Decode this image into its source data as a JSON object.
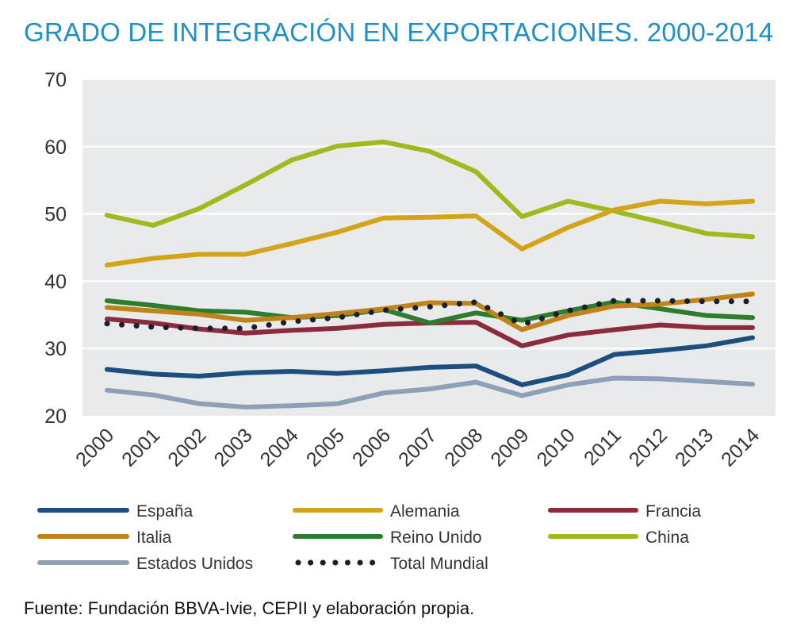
{
  "title": "GRADO DE INTEGRACIÓN EN EXPORTACIONES. 2000-2014",
  "source": "Fuente: Fundación BBVA-Ivie, CEPII y elaboración propia.",
  "chart_data": {
    "type": "line",
    "title": "GRADO DE INTEGRACIÓN EN EXPORTACIONES. 2000-2014",
    "xlabel": "",
    "ylabel": "",
    "ylim": [
      20,
      70
    ],
    "yticks": [
      20,
      30,
      40,
      50,
      60,
      70
    ],
    "grid": true,
    "legend_position": "bottom",
    "background": "#e9eaeb",
    "categories": [
      "2000",
      "2001",
      "2002",
      "2003",
      "2004",
      "2005",
      "2006",
      "2007",
      "2008",
      "2009",
      "2010",
      "2011",
      "2012",
      "2013",
      "2014"
    ],
    "series": [
      {
        "name": "España",
        "color": "#1c4f80",
        "style": "solid",
        "values": [
          26.9,
          26.2,
          25.9,
          26.4,
          26.6,
          26.3,
          26.7,
          27.2,
          27.4,
          24.6,
          26.1,
          29.1,
          29.7,
          30.4,
          31.6
        ]
      },
      {
        "name": "Alemania",
        "color": "#d4a418",
        "style": "solid",
        "values": [
          42.4,
          43.4,
          44.0,
          44.0,
          45.6,
          47.3,
          49.4,
          49.5,
          49.7,
          44.8,
          48.0,
          50.6,
          51.9,
          51.5,
          51.9
        ]
      },
      {
        "name": "Francia",
        "color": "#8c2b3e",
        "style": "solid",
        "values": [
          34.4,
          33.8,
          32.9,
          32.3,
          32.7,
          33.0,
          33.6,
          33.8,
          33.9,
          30.4,
          32.0,
          32.8,
          33.5,
          33.1,
          33.1
        ]
      },
      {
        "name": "Italia",
        "color": "#c08319",
        "style": "solid",
        "values": [
          36.1,
          35.6,
          35.1,
          34.2,
          34.6,
          35.2,
          35.9,
          36.8,
          36.7,
          32.8,
          34.9,
          36.3,
          36.6,
          37.3,
          38.1
        ]
      },
      {
        "name": "Reino Unido",
        "color": "#2e7d2e",
        "style": "solid",
        "values": [
          37.1,
          36.4,
          35.6,
          35.4,
          34.6,
          34.9,
          35.8,
          33.8,
          35.3,
          34.2,
          35.6,
          36.9,
          35.9,
          34.9,
          34.6
        ]
      },
      {
        "name": "China",
        "color": "#9dbb1c",
        "style": "solid",
        "values": [
          49.8,
          48.3,
          50.8,
          54.3,
          58.0,
          60.1,
          60.7,
          59.3,
          56.3,
          49.6,
          51.9,
          50.4,
          48.8,
          47.1,
          46.6
        ]
      },
      {
        "name": "Estados Unidos",
        "color": "#8ea0b6",
        "style": "solid",
        "values": [
          23.8,
          23.1,
          21.8,
          21.3,
          21.5,
          21.8,
          23.4,
          24.0,
          25.0,
          23.0,
          24.6,
          25.6,
          25.5,
          25.1,
          24.7
        ]
      },
      {
        "name": "Total Mundial",
        "color": "#1a1f2b",
        "style": "dotted",
        "values": [
          33.7,
          33.2,
          33.0,
          33.0,
          34.0,
          34.6,
          35.7,
          36.2,
          36.9,
          33.6,
          35.6,
          37.1,
          37.1,
          37.0,
          37.0
        ]
      }
    ]
  }
}
